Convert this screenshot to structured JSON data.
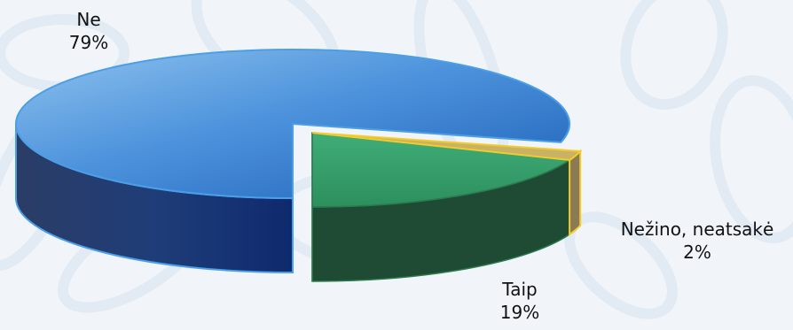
{
  "chart_data": {
    "type": "pie",
    "style": "3d-exploded",
    "title": "",
    "categories": [
      "Ne",
      "Taip",
      "Nežino, neatsakė"
    ],
    "values": [
      79,
      19,
      2
    ],
    "value_labels": [
      "79%",
      "19%",
      "2%"
    ],
    "colors": {
      "Ne": "#3d86d8",
      "Taip": "#2f9a64",
      "Nežino, neatsakė": "#8a7a55"
    },
    "outline_colors": {
      "Ne": "#4a9fe6",
      "Taip": "#2a7a4c",
      "Nežino, neatsakė": "#f2cc2a"
    },
    "legend": "none",
    "labels_position": "outside"
  }
}
